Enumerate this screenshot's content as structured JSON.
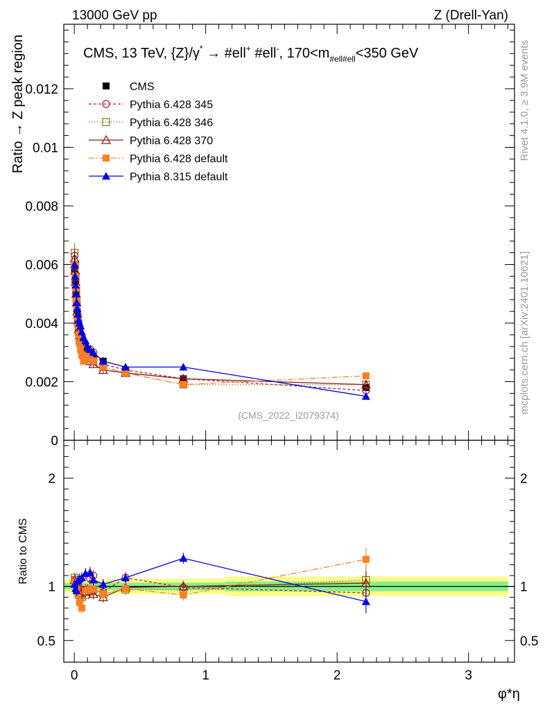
{
  "header": {
    "left": "13000 GeV pp",
    "right": "Z (Drell-Yan)"
  },
  "side_labels": {
    "rivet": "Rivet 4.1.0, ≥ 3.9M events",
    "mcplots": "mcplots.cern.ch [arXiv:2401.10621]"
  },
  "analysis_id": "(CMS_2022_I2079374)",
  "colors": {
    "CMS": "#000000",
    "p345": "#b22234",
    "p346": "#8f7a24",
    "p370": "#8b1a1a",
    "p6def": "#ff7f24",
    "p8def": "#0000dd",
    "band_outer": "#ffff88",
    "band_inner": "#88ee88"
  },
  "chart_data": [
    {
      "type": "line",
      "panel": "main",
      "title": "CMS, 13 TeV, {Z}/γ* → #ell⁺ #ell⁻, 170<m#ell#ell<350 GeV",
      "title_parts": {
        "a": "CMS, 13 TeV, {Z}/γ",
        "b": "*",
        "c": " →  #ell",
        "d": "+",
        "e": " #ell",
        "f": "-",
        "g": ", 170<m",
        "h": "#ell#ell",
        "i": "<350 GeV"
      },
      "ylabel": "Ratio → Z peak region",
      "xlabel": "",
      "xlim": [
        -0.08,
        3.35
      ],
      "ylim": [
        0,
        0.0142
      ],
      "yticks": [
        0,
        0.002,
        0.004,
        0.006,
        0.008,
        0.01,
        0.012
      ],
      "ytick_labels": [
        "0",
        "0.002",
        "0.004",
        "0.006",
        "0.008",
        "0.01",
        "0.012"
      ],
      "x": [
        0.002,
        0.006,
        0.01,
        0.014,
        0.018,
        0.022,
        0.027,
        0.033,
        0.04,
        0.048,
        0.057,
        0.07,
        0.085,
        0.1,
        0.12,
        0.145,
        0.22,
        0.39,
        0.83,
        2.22
      ],
      "series": [
        {
          "name": "CMS",
          "key": "CMS",
          "style": "none",
          "marker": "square-filled",
          "values": [
            0.00575,
            0.0054,
            0.0051,
            0.0048,
            0.0046,
            0.0044,
            0.0042,
            0.004,
            0.0038,
            0.0036,
            0.0034,
            0.0032,
            0.0031,
            0.003,
            0.0029,
            0.0028,
            0.0027,
            0.0024,
            0.0021,
            0.0018
          ]
        },
        {
          "name": "Pythia 6.428 345",
          "key": "p345",
          "style": "4,3",
          "marker": "circle-open",
          "values": [
            0.0063,
            0.0059,
            0.0054,
            0.005,
            0.0047,
            0.0044,
            0.0041,
            0.0039,
            0.0037,
            0.0035,
            0.0033,
            0.0031,
            0.003,
            0.0029,
            0.0031,
            0.003,
            0.0026,
            0.0024,
            0.0021,
            0.0017
          ]
        },
        {
          "name": "Pythia 6.428 346",
          "key": "p346",
          "style": "1.5,2.5",
          "marker": "square-open",
          "values": [
            0.0064,
            0.006,
            0.0056,
            0.0051,
            0.0047,
            0.0043,
            0.004,
            0.0037,
            0.0034,
            0.0033,
            0.0031,
            0.0029,
            0.0028,
            0.0028,
            0.0027,
            0.0027,
            0.0025,
            0.0023,
            0.0019,
            0.0019
          ]
        },
        {
          "name": "Pythia 6.428 370",
          "key": "p370",
          "style": "",
          "marker": "triangle-open",
          "values": [
            0.0062,
            0.0058,
            0.0054,
            0.005,
            0.0047,
            0.0044,
            0.0041,
            0.0038,
            0.0036,
            0.0034,
            0.0032,
            0.003,
            0.0029,
            0.0028,
            0.0027,
            0.0026,
            0.0024,
            0.0023,
            0.0021,
            0.0019
          ]
        },
        {
          "name": "Pythia 6.428 default",
          "key": "p6def",
          "style": "8,3,2,3",
          "marker": "square-filled",
          "values": [
            0.006,
            0.0056,
            0.0052,
            0.0048,
            0.0045,
            0.0042,
            0.0039,
            0.0036,
            0.0033,
            0.0031,
            0.0029,
            0.0027,
            0.0028,
            0.0029,
            0.0028,
            0.0027,
            0.0025,
            0.0023,
            0.0019,
            0.0022
          ]
        },
        {
          "name": "Pythia 8.315 default",
          "key": "p8def",
          "style": "",
          "marker": "triangle-filled",
          "values": [
            0.006,
            0.0056,
            0.0053,
            0.005,
            0.0047,
            0.0045,
            0.0043,
            0.0041,
            0.004,
            0.0039,
            0.0037,
            0.0035,
            0.0034,
            0.0032,
            0.0031,
            0.003,
            0.0027,
            0.0025,
            0.0025,
            0.0015
          ]
        }
      ]
    },
    {
      "type": "line",
      "panel": "ratio",
      "ylabel": "Ratio to CMS",
      "xlabel": "φ*η",
      "xlim": [
        -0.08,
        3.35
      ],
      "ylim": [
        0.3,
        2.35
      ],
      "yticks": [
        0.5,
        1,
        2
      ],
      "ytick_labels": [
        "0.5",
        "1",
        "2"
      ],
      "xticks": [
        0,
        1,
        2,
        3
      ],
      "xtick_labels": [
        "0",
        "1",
        "2",
        "3"
      ],
      "bands": [
        {
          "x0": -0.08,
          "x1": 0.25,
          "outer": 0.06,
          "inner": 0.03
        },
        {
          "x0": 0.25,
          "x1": 1.15,
          "outer": 0.07,
          "inner": 0.035
        },
        {
          "x0": 1.15,
          "x1": 3.3,
          "outer": 0.09,
          "inner": 0.045
        }
      ],
      "x": [
        0.002,
        0.01,
        0.018,
        0.027,
        0.04,
        0.057,
        0.085,
        0.12,
        0.145,
        0.22,
        0.39,
        0.83,
        2.22
      ],
      "series": [
        {
          "key": "p345",
          "style": "4,3",
          "marker": "circle-open",
          "values": [
            1.05,
            1.03,
            1.02,
            0.98,
            0.97,
            0.97,
            0.97,
            1.07,
            1.1,
            0.95,
            1.08,
            0.99,
            0.94
          ]
        },
        {
          "key": "p346",
          "style": "1.5,2.5",
          "marker": "square-open",
          "values": [
            1.08,
            1.06,
            1.02,
            0.96,
            0.92,
            0.9,
            0.92,
            0.95,
            0.97,
            0.93,
            0.97,
            0.97,
            1.06
          ]
        },
        {
          "key": "p370",
          "style": "",
          "marker": "triangle-open",
          "values": [
            1.06,
            1.04,
            1.03,
            0.98,
            0.95,
            0.94,
            0.95,
            0.96,
            0.93,
            0.9,
            0.99,
            1.0,
            1.03
          ]
        },
        {
          "key": "p6def",
          "style": "8,3,2,3",
          "marker": "square-filled",
          "values": [
            1.04,
            1.02,
            0.97,
            0.92,
            0.85,
            0.8,
            0.96,
            0.97,
            0.98,
            0.93,
            0.98,
            0.92,
            1.25
          ]
        },
        {
          "key": "p8def",
          "style": "",
          "marker": "triangle-filled",
          "values": [
            1.02,
            0.98,
            0.96,
            1.05,
            1.07,
            1.08,
            1.12,
            1.13,
            1.06,
            1.02,
            1.08,
            1.26,
            0.86
          ]
        }
      ]
    }
  ]
}
